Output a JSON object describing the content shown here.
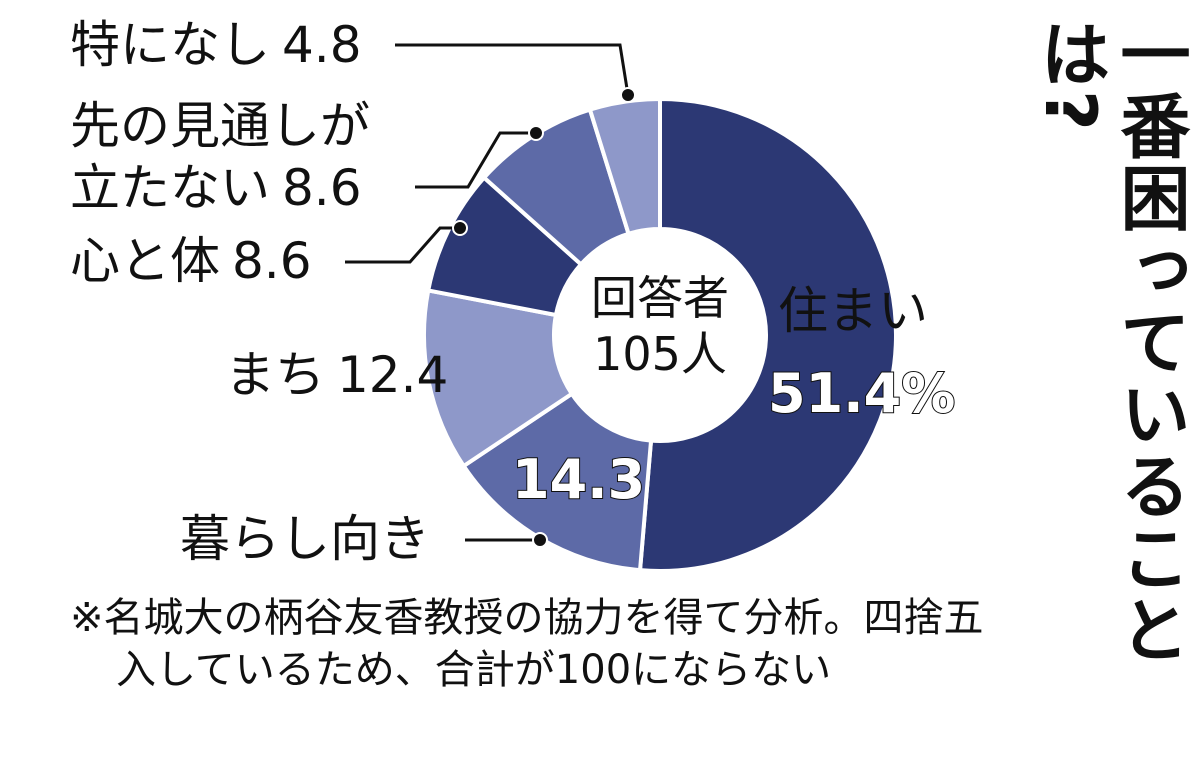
{
  "chart_data": {
    "type": "donut",
    "title": "一番困っていることは?",
    "center_label": "回答者",
    "center_value": "105人",
    "categories": [
      "住まい",
      "暮らし向き",
      "まち",
      "心と体",
      "先の見通しが立たない",
      "特になし"
    ],
    "values": [
      51.4,
      14.3,
      12.4,
      8.6,
      8.6,
      4.8
    ],
    "value_labels": [
      "51.4%",
      "14.3",
      "12.4",
      "8.6",
      "8.6",
      "4.8"
    ],
    "colors": [
      "#2c3874",
      "#5d6aa7",
      "#8e98c9",
      "#2c3874",
      "#5d6aa7",
      "#8e98c9"
    ],
    "note": "※名城大の柄谷友香教授の協力を得て分析。四捨五入しているため、合計が100にならない"
  }
}
